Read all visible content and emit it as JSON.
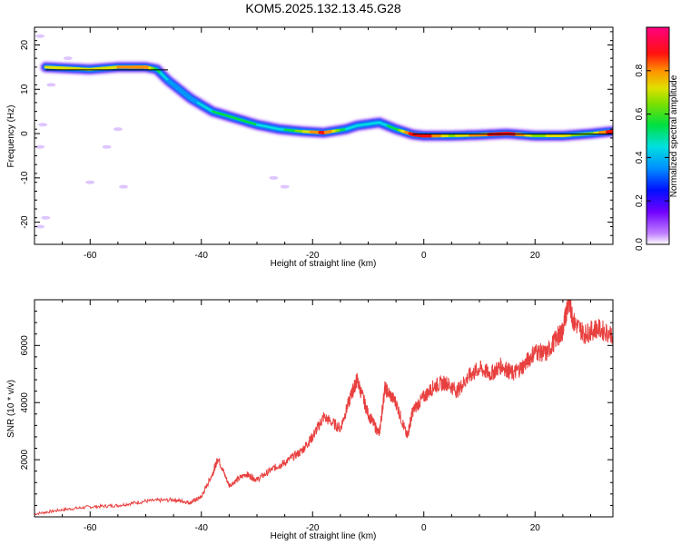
{
  "page": {
    "title": "KOM5.2025.132.13.45.G28"
  },
  "colors": {
    "snr_line": "#e8403f",
    "axis": "#000000",
    "background": "#ffffff"
  },
  "chart_data": [
    {
      "type": "heatmap",
      "title": "KOM5.2025.132.13.45.G28",
      "xlabel": "Height of straight line (km)",
      "ylabel": "Frequency (Hz)",
      "xlim": [
        -70,
        34
      ],
      "ylim": [
        -25,
        24
      ],
      "x_ticks": [
        -60,
        -40,
        -20,
        0,
        20
      ],
      "y_ticks": [
        -20,
        -10,
        0,
        10,
        20
      ],
      "colorbar": {
        "label": "Normalized spectral amplitude",
        "ticks": [
          0.0,
          0.2,
          0.4,
          0.6,
          0.8
        ],
        "range": [
          0,
          1
        ],
        "colormap": "rainbow (purple-blue-cyan-green-yellow-orange-red-magenta)"
      },
      "ridge": {
        "x": [
          -68,
          -65,
          -60,
          -55,
          -50,
          -48,
          -46,
          -42,
          -38,
          -34,
          -30,
          -26,
          -22,
          -18,
          -14,
          -12,
          -8,
          -5,
          -2,
          0,
          5,
          10,
          15,
          20,
          25,
          30,
          34
        ],
        "frequency": [
          15,
          14.8,
          14.5,
          15,
          15,
          14.5,
          12,
          8,
          5,
          3.5,
          2,
          1,
          0.5,
          0.2,
          1,
          1.8,
          2.5,
          1,
          -0.2,
          -0.5,
          -0.5,
          -0.3,
          0,
          -0.5,
          -0.5,
          0,
          0.5
        ],
        "amplitude": [
          0.75,
          0.8,
          0.75,
          0.8,
          0.9,
          0.6,
          0.45,
          0.4,
          0.55,
          0.6,
          0.55,
          0.5,
          0.7,
          0.95,
          0.55,
          0.5,
          0.5,
          0.6,
          0.95,
          1.0,
          0.7,
          0.85,
          1.0,
          0.7,
          0.75,
          0.65,
          1.0
        ]
      },
      "grid": false
    },
    {
      "type": "line",
      "xlabel": "Height of straight line (km)",
      "ylabel": "SNR (10 * v/v)",
      "xlim": [
        -70,
        34
      ],
      "ylim": [
        0,
        7600
      ],
      "x_ticks": [
        -60,
        -40,
        -20,
        0,
        20
      ],
      "y_ticks": [
        2000,
        4000,
        6000
      ],
      "grid": false,
      "series": [
        {
          "x": [
            -70,
            -65,
            -60,
            -55,
            -50,
            -45,
            -42,
            -40,
            -38,
            -37,
            -35,
            -32,
            -30,
            -27,
            -25,
            -22,
            -20,
            -18,
            -15,
            -13,
            -12,
            -10,
            -8,
            -7,
            -5,
            -3,
            -2,
            0,
            2,
            4,
            6,
            8,
            10,
            12,
            14,
            16,
            18,
            20,
            22,
            24,
            25,
            26,
            27,
            29,
            31,
            34
          ],
          "y": [
            100,
            250,
            350,
            400,
            550,
            600,
            500,
            700,
            1500,
            2050,
            1100,
            1500,
            1300,
            1700,
            1900,
            2300,
            2800,
            3500,
            3100,
            4300,
            4800,
            3600,
            2900,
            4500,
            4000,
            2800,
            3700,
            4200,
            4600,
            4700,
            4400,
            4900,
            5200,
            5000,
            5300,
            5000,
            5300,
            5800,
            5700,
            6300,
            6500,
            7600,
            6800,
            6400,
            6600,
            6400
          ]
        }
      ]
    }
  ]
}
